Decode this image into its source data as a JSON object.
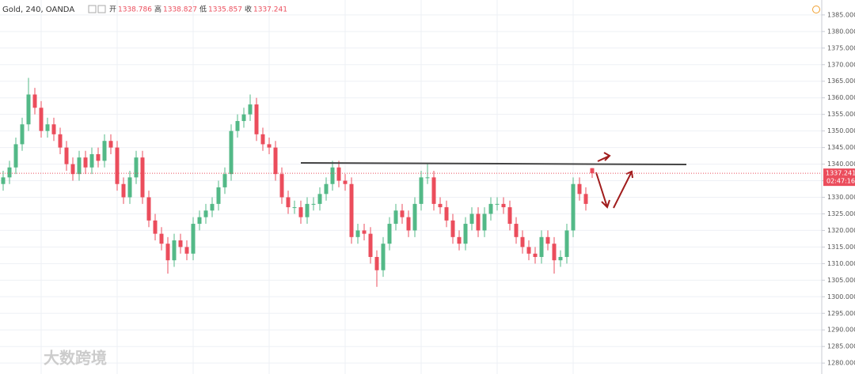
{
  "chart_data": {
    "type": "candlestick",
    "title": "Gold, 240, OANDA",
    "ohlc_labels": [
      "开",
      "高",
      "低",
      "收"
    ],
    "open": [
      1334,
      1336,
      1339,
      1346,
      1352,
      1361,
      1357,
      1350,
      1352,
      1349,
      1345,
      1340,
      1337,
      1342,
      1339,
      1343,
      1341,
      1347,
      1345,
      1334,
      1330,
      1336,
      1342,
      1330,
      1323,
      1319,
      1316,
      1311,
      1317,
      1315,
      1313,
      1322,
      1324,
      1326,
      1328,
      1333,
      1337,
      1350,
      1353,
      1355,
      1358,
      1349,
      1346,
      1345,
      1337,
      1330,
      1327,
      1327,
      1324,
      1328,
      1328,
      1331,
      1334,
      1339,
      1335,
      1334,
      1318,
      1320,
      1319,
      1312,
      1308,
      1316,
      1322,
      1326,
      1324,
      1320,
      1328,
      1336,
      1336,
      1328,
      1327,
      1323,
      1318,
      1316,
      1322,
      1325,
      1320,
      1325,
      1328,
      1328,
      1327,
      1322,
      1318,
      1315,
      1313,
      1312,
      1318,
      1316,
      1311,
      1312,
      1320,
      1334,
      1331,
      1338.786
    ],
    "high": [
      1338,
      1341,
      1348,
      1354,
      1366,
      1363,
      1359,
      1354,
      1354,
      1351,
      1347,
      1342,
      1344,
      1344,
      1345,
      1345,
      1349,
      1349,
      1347,
      1336,
      1338,
      1344,
      1344,
      1332,
      1325,
      1321,
      1318,
      1319,
      1319,
      1317,
      1324,
      1326,
      1328,
      1330,
      1335,
      1339,
      1352,
      1355,
      1357,
      1361,
      1360,
      1351,
      1348,
      1347,
      1339,
      1332,
      1329,
      1329,
      1330,
      1330,
      1333,
      1336,
      1341,
      1341,
      1337,
      1336,
      1322,
      1322,
      1321,
      1314,
      1318,
      1324,
      1328,
      1328,
      1326,
      1330,
      1338,
      1340,
      1338,
      1330,
      1329,
      1325,
      1320,
      1324,
      1327,
      1327,
      1327,
      1330,
      1330,
      1330,
      1329,
      1324,
      1320,
      1317,
      1315,
      1320,
      1320,
      1318,
      1314,
      1322,
      1336,
      1336,
      1333,
      1338.827
    ],
    "low": [
      1332,
      1334,
      1337,
      1344,
      1350,
      1355,
      1348,
      1348,
      1347,
      1343,
      1338,
      1335,
      1335,
      1337,
      1337,
      1339,
      1339,
      1343,
      1332,
      1328,
      1328,
      1334,
      1328,
      1321,
      1317,
      1314,
      1307,
      1309,
      1313,
      1311,
      1311,
      1320,
      1322,
      1324,
      1326,
      1331,
      1335,
      1348,
      1351,
      1353,
      1347,
      1344,
      1343,
      1335,
      1328,
      1325,
      1325,
      1322,
      1322,
      1326,
      1326,
      1329,
      1332,
      1333,
      1332,
      1316,
      1316,
      1317,
      1310,
      1303,
      1306,
      1314,
      1320,
      1322,
      1318,
      1318,
      1326,
      1334,
      1326,
      1325,
      1321,
      1316,
      1314,
      1314,
      1320,
      1318,
      1318,
      1323,
      1326,
      1325,
      1320,
      1316,
      1313,
      1311,
      1310,
      1310,
      1314,
      1307,
      1309,
      1310,
      1318,
      1329,
      1326,
      1335.857
    ],
    "close": [
      1336,
      1339,
      1346,
      1352,
      1361,
      1357,
      1350,
      1352,
      1349,
      1345,
      1340,
      1337,
      1342,
      1339,
      1343,
      1341,
      1347,
      1345,
      1334,
      1330,
      1336,
      1342,
      1330,
      1323,
      1319,
      1316,
      1311,
      1317,
      1315,
      1313,
      1322,
      1324,
      1326,
      1328,
      1333,
      1337,
      1350,
      1353,
      1355,
      1358,
      1349,
      1346,
      1345,
      1337,
      1330,
      1327,
      1327,
      1324,
      1328,
      1328,
      1331,
      1334,
      1339,
      1335,
      1334,
      1318,
      1320,
      1319,
      1312,
      1308,
      1316,
      1322,
      1326,
      1324,
      1320,
      1328,
      1336,
      1336,
      1328,
      1327,
      1323,
      1318,
      1316,
      1322,
      1325,
      1320,
      1325,
      1328,
      1328,
      1327,
      1322,
      1318,
      1315,
      1313,
      1312,
      1318,
      1316,
      1311,
      1312,
      1320,
      1334,
      1331,
      1328,
      1337.241
    ],
    "up_color": "#53b987",
    "down_color": "#eb4d5c",
    "ylim": [
      1276.7,
      1389.5
    ],
    "yticks": [
      {
        "value": 1280,
        "label": "1280.000"
      },
      {
        "value": 1285,
        "label": "1285.000"
      },
      {
        "value": 1290,
        "label": "1290.000"
      },
      {
        "value": 1295,
        "label": "1295.000"
      },
      {
        "value": 1300,
        "label": "1300.000"
      },
      {
        "value": 1305,
        "label": "1305.000"
      },
      {
        "value": 1310,
        "label": "1310.000"
      },
      {
        "value": 1315,
        "label": "1315.000"
      },
      {
        "value": 1320,
        "label": "1320.000"
      },
      {
        "value": 1325,
        "label": "1325.000"
      },
      {
        "value": 1330,
        "label": "1330.000"
      },
      {
        "value": 1335,
        "label": "1335.000"
      },
      {
        "value": 1340,
        "label": "1340.000"
      },
      {
        "value": 1345,
        "label": "1345.000"
      },
      {
        "value": 1350,
        "label": "1350.000"
      },
      {
        "value": 1355,
        "label": "1355.000"
      },
      {
        "value": 1360,
        "label": "1360.000"
      },
      {
        "value": 1365,
        "label": "1365.000"
      },
      {
        "value": 1370,
        "label": "1370.000"
      },
      {
        "value": 1375,
        "label": "1375.000"
      },
      {
        "value": 1380,
        "label": "1380.000"
      },
      {
        "value": 1385,
        "label": "1385.000"
      }
    ],
    "grid": true,
    "countdown": "02:47:16"
  },
  "watermark": "大数跨境"
}
